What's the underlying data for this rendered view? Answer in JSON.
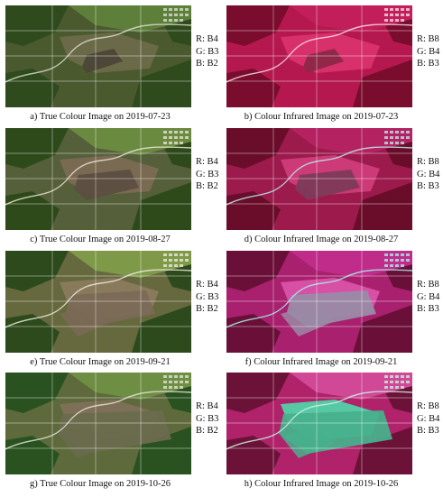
{
  "panels": [
    {
      "caption": "a) True Colour Image on 2019-07-23",
      "bands": [
        "R: B4",
        "G: B3",
        "B: B2"
      ],
      "palette": "tc1"
    },
    {
      "caption": "b) Colour Infrared Image on 2019-07-23",
      "bands": [
        "R: B8",
        "G: B4",
        "B: B3"
      ],
      "palette": "cir1"
    },
    {
      "caption": "c) True Colour Image on 2019-08-27",
      "bands": [
        "R: B4",
        "G: B3",
        "B: B2"
      ],
      "palette": "tc2"
    },
    {
      "caption": "d) Colour Infrared Image on 2019-08-27",
      "bands": [
        "R: B8",
        "G: B4",
        "B: B3"
      ],
      "palette": "cir2"
    },
    {
      "caption": "e) True Colour Image on 2019-09-21",
      "bands": [
        "R: B4",
        "G: B3",
        "B: B2"
      ],
      "palette": "tc3"
    },
    {
      "caption": "f) Colour Infrared Image on 2019-09-21",
      "bands": [
        "R: B8",
        "G: B4",
        "B: B3"
      ],
      "palette": "cir3"
    },
    {
      "caption": "g) True Colour Image on 2019-10-26",
      "bands": [
        "R: B4",
        "G: B3",
        "B: B2"
      ],
      "palette": "tc4"
    },
    {
      "caption": "h) Colour Infrared Image on 2019-10-26",
      "bands": [
        "R: B8",
        "G: B4",
        "B: B3"
      ],
      "palette": "cir4"
    }
  ],
  "palettes": {
    "tc1": {
      "bg": "#4a5a2e",
      "a": "#2f4a1c",
      "b": "#6b6a48",
      "c": "#5e7f3a",
      "burn": "#4b4636",
      "road": "#d8dccf"
    },
    "cir1": {
      "bg": "#b4184e",
      "a": "#7a0c2e",
      "b": "#d8306a",
      "c": "#c21f5a",
      "burn": "#8e2848",
      "road": "#f2dbe6"
    },
    "tc2": {
      "bg": "#55603a",
      "a": "#2e4a1a",
      "b": "#7a6a52",
      "c": "#6a8a40",
      "burn": "#5c4e40",
      "road": "#e6e2d2"
    },
    "cir2": {
      "bg": "#9c1a4c",
      "a": "#6a0d2a",
      "b": "#cc3a78",
      "c": "#b42262",
      "burn": "#7e3a58",
      "road": "#b8e6ea"
    },
    "tc3": {
      "bg": "#66683e",
      "a": "#2c4a1c",
      "b": "#8a7a5c",
      "c": "#7e9a48",
      "burn": "#7a6a56",
      "road": "#ece8d8"
    },
    "cir3": {
      "bg": "#a8206e",
      "a": "#6a1038",
      "b": "#d850a6",
      "c": "#c02c8a",
      "burn": "#9a8aa6",
      "road": "#a6ecec"
    },
    "tc4": {
      "bg": "#5e6a3c",
      "a": "#2a5220",
      "b": "#7e7058",
      "c": "#6e8e44",
      "burn": "#6a6a4e",
      "road": "#e0e2d4"
    },
    "cir4": {
      "bg": "#b0226a",
      "a": "#6c1238",
      "b": "#56c8a4",
      "c": "#d04896",
      "burn": "#48b08c",
      "road": "#c8f0e0"
    }
  }
}
